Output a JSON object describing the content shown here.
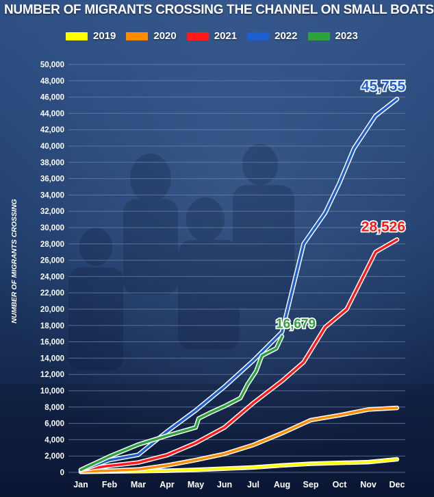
{
  "colors": {
    "grid": "#6f82a8",
    "text": "#ffffff",
    "background_top": "#2a4a7e",
    "background_bottom": "#0c1a38"
  },
  "chart_data": {
    "type": "line",
    "title": "NUMBER OF MIGRANTS CROSSING THE CHANNEL ON SMALL BOATS",
    "xlabel": "",
    "ylabel": "NUMBER OF MIGRANTS CROSSING",
    "x": [
      "Jan",
      "Feb",
      "Mar",
      "Apr",
      "May",
      "Jun",
      "Jul",
      "Aug",
      "Sep",
      "Oct",
      "Nov",
      "Dec"
    ],
    "ylim": [
      0,
      50000
    ],
    "yticks": [
      0,
      2000,
      4000,
      6000,
      8000,
      10000,
      12000,
      14000,
      16000,
      18000,
      20000,
      22000,
      24000,
      26000,
      28000,
      30000,
      32000,
      34000,
      36000,
      38000,
      40000,
      42000,
      44000,
      46000,
      48000,
      50000
    ],
    "ytick_labels": [
      "0",
      "2,000",
      "4,000",
      "6,000",
      "8,000",
      "10,000",
      "12,000",
      "14,000",
      "16,000",
      "18,000",
      "20,000",
      "22,000",
      "24,000",
      "26,000",
      "28,000",
      "30,000",
      "32,000",
      "34,000",
      "36,000",
      "38,000",
      "40,000",
      "42,000",
      "44,000",
      "46,000",
      "48,000",
      "50,000"
    ],
    "grid": true,
    "legend_position": "top",
    "series": [
      {
        "name": "2019",
        "color": "#ffff00",
        "values": [
          [
            0,
            50
          ],
          [
            1,
            100
          ],
          [
            2,
            150
          ],
          [
            3,
            200
          ],
          [
            4,
            300
          ],
          [
            5,
            450
          ],
          [
            6,
            600
          ],
          [
            7,
            850
          ],
          [
            8,
            1050
          ],
          [
            9,
            1150
          ],
          [
            10,
            1250
          ],
          [
            11,
            1600
          ]
        ]
      },
      {
        "name": "2020",
        "color": "#ff8c00",
        "values": [
          [
            0,
            100
          ],
          [
            1,
            200
          ],
          [
            2,
            350
          ],
          [
            3,
            850
          ],
          [
            4,
            1500
          ],
          [
            5,
            2250
          ],
          [
            6,
            3350
          ],
          [
            7,
            4800
          ],
          [
            8,
            6400
          ],
          [
            9,
            7000
          ],
          [
            10,
            7700
          ],
          [
            11,
            7900
          ]
        ]
      },
      {
        "name": "2021",
        "color": "#ff1a1a",
        "values": [
          [
            0,
            300
          ],
          [
            1,
            800
          ],
          [
            2,
            1200
          ],
          [
            3,
            2100
          ],
          [
            4,
            3600
          ],
          [
            5,
            5500
          ],
          [
            6,
            8500
          ],
          [
            7,
            11200
          ],
          [
            7.75,
            13500
          ],
          [
            8.5,
            17800
          ],
          [
            9.25,
            20000
          ],
          [
            10.25,
            27000
          ],
          [
            11,
            28526
          ]
        ]
      },
      {
        "name": "2022",
        "color": "#1e5fcf",
        "values": [
          [
            0,
            250
          ],
          [
            1,
            1500
          ],
          [
            2,
            2150
          ],
          [
            3,
            5000
          ],
          [
            4,
            7600
          ],
          [
            5,
            10500
          ],
          [
            6,
            13700
          ],
          [
            7,
            17200
          ],
          [
            7.75,
            28000
          ],
          [
            8.5,
            31800
          ],
          [
            9,
            35500
          ],
          [
            9.5,
            39700
          ],
          [
            10.25,
            43700
          ],
          [
            11,
            45755
          ]
        ]
      },
      {
        "name": "2023",
        "color": "#2ea23c",
        "values": [
          [
            0,
            300
          ],
          [
            1,
            1950
          ],
          [
            2,
            3400
          ],
          [
            3,
            4500
          ],
          [
            4,
            5500
          ],
          [
            4.1,
            6600
          ],
          [
            4.5,
            7300
          ],
          [
            5,
            8100
          ],
          [
            5.55,
            9100
          ],
          [
            5.8,
            10800
          ],
          [
            6.1,
            12400
          ],
          [
            6.3,
            14300
          ],
          [
            6.8,
            15200
          ],
          [
            7,
            16679
          ]
        ]
      }
    ],
    "annotations": [
      {
        "text": "45,755",
        "series": "2022",
        "color": "#1e5fcf",
        "at": [
          11,
          45755
        ]
      },
      {
        "text": "28,526",
        "series": "2021",
        "color": "#ff1a1a",
        "at": [
          11,
          28526
        ]
      },
      {
        "text": "16,679",
        "series": "2023",
        "color": "#2ea23c",
        "at": [
          7,
          16679
        ]
      }
    ]
  }
}
